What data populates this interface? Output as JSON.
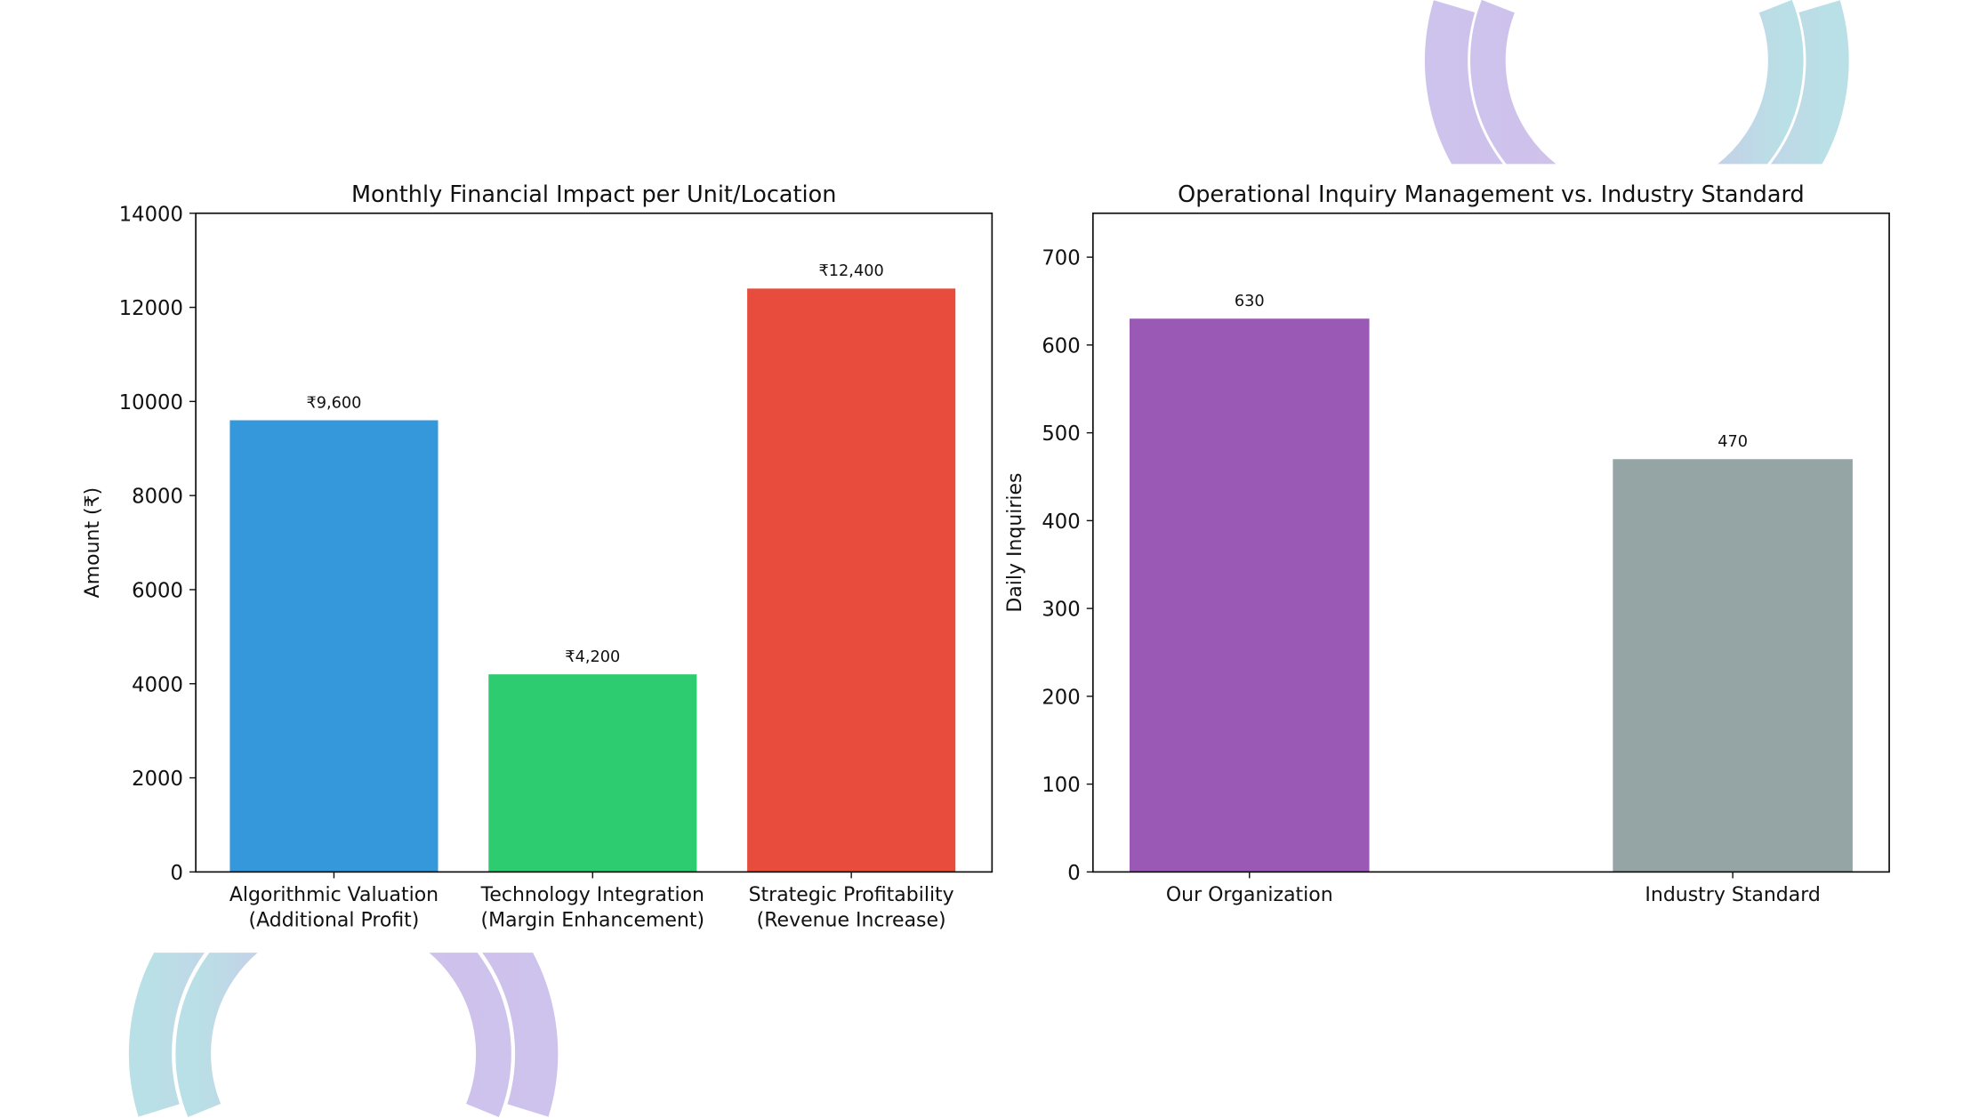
{
  "colors": {
    "ring_purple": "#d0bfea",
    "ring_cyan": "#b9e0e6"
  },
  "chart_data": [
    {
      "type": "bar",
      "title": "Monthly Financial Impact per Unit/Location",
      "xlabel": "",
      "ylabel": "Amount (₹)",
      "categories": [
        [
          "Algorithmic Valuation",
          "(Additional Profit)"
        ],
        [
          "Technology Integration",
          "(Margin Enhancement)"
        ],
        [
          "Strategic Profitability",
          "(Revenue Increase)"
        ]
      ],
      "values": [
        9600,
        4200,
        12400
      ],
      "data_labels": [
        "₹9,600",
        "₹4,200",
        "₹12,400"
      ],
      "colors": [
        "#3498db",
        "#2ecc71",
        "#e74c3c"
      ],
      "ylim": [
        0,
        14000
      ],
      "yticks": [
        "0",
        "2000",
        "4000",
        "6000",
        "8000",
        "10000",
        "12000",
        "14000"
      ],
      "grid": false
    },
    {
      "type": "bar",
      "title": "Operational Inquiry Management vs. Industry Standard",
      "xlabel": "",
      "ylabel": "Daily Inquiries",
      "categories": [
        [
          "Our Organization"
        ],
        [
          "Industry Standard"
        ]
      ],
      "values": [
        630,
        470
      ],
      "data_labels": [
        "630",
        "470"
      ],
      "colors": [
        "#9b59b6",
        "#95a5a6"
      ],
      "ylim": [
        0,
        750
      ],
      "yticks": [
        "0",
        "100",
        "200",
        "300",
        "400",
        "500",
        "600",
        "700"
      ],
      "grid": false
    }
  ]
}
